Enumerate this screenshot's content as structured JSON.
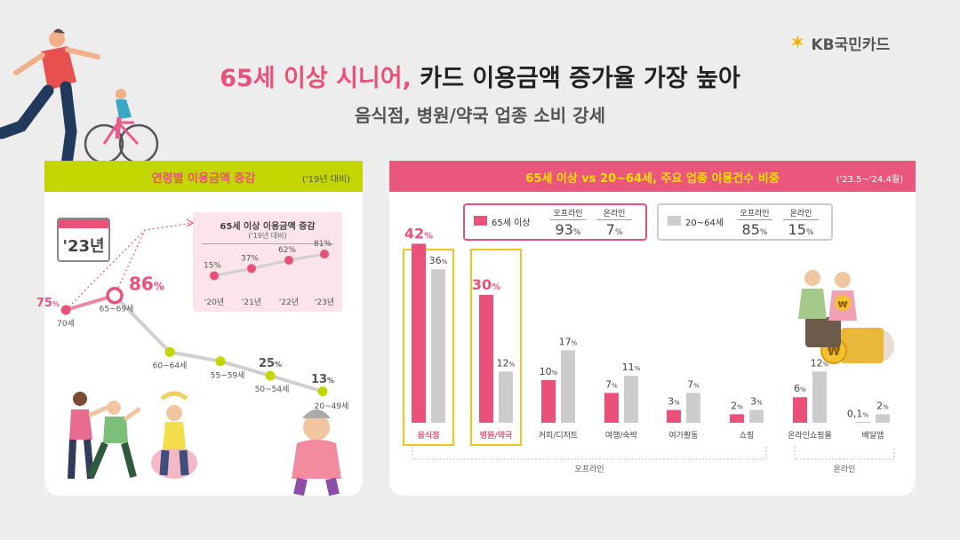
{
  "brand": {
    "name": "KB국민카드"
  },
  "header": {
    "title_highlight": "65세 이상 시니어,",
    "title_rest": " 카드 이용금액 증가율 가장 높아",
    "subtitle": "음식점, 병원/약국 업종 소비 강세"
  },
  "left_panel": {
    "title": "연령별 이용금액 증감",
    "note": "('19년 대비)",
    "calendar_label": "'23년",
    "accent": "#e9517a",
    "line_color": "#c4d600"
  },
  "chart_data": [
    {
      "type": "line",
      "title": "연령별 이용금액 증감",
      "categories": [
        "70세",
        "65~69세",
        "60~64세",
        "55~59세",
        "50~54세",
        "20~49세"
      ],
      "values": [
        75,
        86,
        43,
        36,
        25,
        13
      ],
      "value_labels": [
        "75%",
        "86%",
        "",
        "",
        "25%",
        "13%"
      ],
      "unit": "%"
    },
    {
      "type": "line",
      "title": "65세 이상 이용금액 증감",
      "subtitle": "('19년 대비)",
      "categories": [
        "'20년",
        "'21년",
        "'22년",
        "'23년"
      ],
      "values": [
        15,
        37,
        62,
        81
      ],
      "unit": "%"
    },
    {
      "type": "bar",
      "title": "65세 이상 vs 20~64세, 주요 업종 이용건수 비중",
      "note": "('23.5~'24.4월)",
      "categories": [
        "음식점",
        "병원/약국",
        "커피/디저트",
        "여행/숙박",
        "여가활동",
        "쇼핑",
        "온라인쇼핑몰",
        "배달앱"
      ],
      "groups": [
        {
          "name": "오프라인",
          "categories": [
            "음식점",
            "병원/약국",
            "커피/디저트",
            "여행/숙박",
            "여가활동",
            "쇼핑"
          ]
        },
        {
          "name": "온라인",
          "categories": [
            "온라인쇼핑몰",
            "배달앱"
          ]
        }
      ],
      "highlighted": [
        "음식점",
        "병원/약국"
      ],
      "series": [
        {
          "name": "65세 이상",
          "values": [
            42,
            30,
            10,
            7,
            3,
            2,
            6,
            0.1
          ],
          "labels": [
            "42",
            "30",
            "10",
            "7",
            "3",
            "2",
            "6",
            "0.1"
          ],
          "color": "#e9517a"
        },
        {
          "name": "20~64세",
          "values": [
            36,
            12,
            17,
            11,
            7,
            3,
            12,
            2
          ],
          "labels": [
            "36",
            "12",
            "17",
            "11",
            "7",
            "3",
            "12",
            "2"
          ],
          "color": "#cccccc"
        }
      ],
      "unit": "%"
    }
  ],
  "right_panel": {
    "title": "65세 이상 vs 20~64세, 주요 업종 이용건수 비중",
    "note": "('23.5~'24.4월)",
    "legend": [
      {
        "name": "65세 이상",
        "offline_label": "오프라인",
        "offline": "93",
        "online_label": "온라인",
        "online": "7",
        "color": "#e9517a"
      },
      {
        "name": "20~64세",
        "offline_label": "오프라인",
        "offline": "85",
        "online_label": "온라인",
        "online": "15",
        "color": "#cccccc"
      }
    ],
    "pct": "%"
  }
}
